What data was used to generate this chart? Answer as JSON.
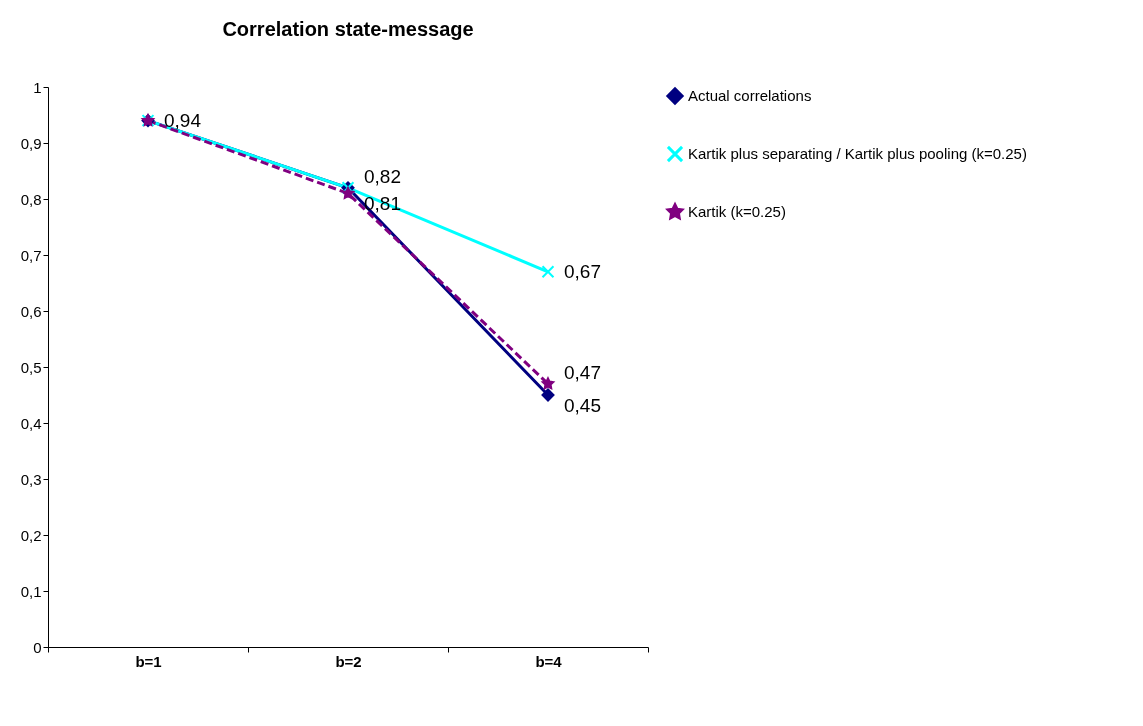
{
  "chart_data": {
    "type": "line",
    "title": "Correlation state-message",
    "categories": [
      "b=1",
      "b=2",
      "b=4"
    ],
    "series": [
      {
        "name": "Actual correlations",
        "color": "#000080",
        "values": [
          0.94,
          0.82,
          0.45
        ],
        "marker": "diamond",
        "line_style": "solid",
        "value_labels": [
          "0,94",
          null,
          "0,45"
        ]
      },
      {
        "name": "Kartik plus separating / Kartik plus pooling (k=0.25)",
        "color": "#00ffff",
        "values": [
          0.94,
          0.82,
          0.67
        ],
        "marker": "cross",
        "line_style": "solid",
        "value_labels": [
          null,
          "0,82",
          "0,67"
        ]
      },
      {
        "name": "Kartik (k=0.25)",
        "color": "#800080",
        "values": [
          0.94,
          0.81,
          0.47
        ],
        "marker": "star",
        "line_style": "dashed",
        "value_labels": [
          null,
          "0,81",
          "0,47"
        ]
      }
    ],
    "ylim": [
      0,
      1
    ],
    "yticks": [
      0,
      {
        "value": 0.1,
        "label": "0,1"
      },
      {
        "value": 0.2,
        "label": "0,2"
      },
      {
        "value": 0.3,
        "label": "0,3"
      },
      {
        "value": 0.4,
        "label": "0,4"
      },
      {
        "value": 0.5,
        "label": "0,5"
      },
      {
        "value": 0.6,
        "label": "0,6"
      },
      {
        "value": 0.7,
        "label": "0,7"
      },
      {
        "value": 0.8,
        "label": "0,8"
      },
      {
        "value": 0.9,
        "label": "0,9"
      },
      1
    ],
    "grid": false,
    "legend": "right"
  }
}
